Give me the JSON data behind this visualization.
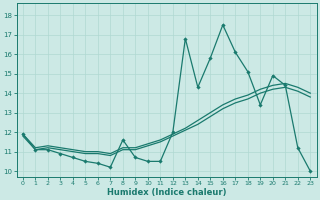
{
  "xlabel": "Humidex (Indice chaleur)",
  "xlim": [
    -0.5,
    23.5
  ],
  "ylim": [
    9.7,
    18.6
  ],
  "xticks": [
    0,
    1,
    2,
    3,
    4,
    5,
    6,
    7,
    8,
    9,
    10,
    11,
    12,
    13,
    14,
    15,
    16,
    17,
    18,
    19,
    20,
    21,
    22,
    23
  ],
  "yticks": [
    10,
    11,
    12,
    13,
    14,
    15,
    16,
    17,
    18
  ],
  "bg_color": "#cce9e5",
  "line_color": "#1a7a6e",
  "grid_color": "#b0d8d2",
  "line1_x": [
    0,
    1,
    2,
    3,
    4,
    5,
    6,
    7,
    8,
    9,
    10,
    11,
    12,
    13,
    14,
    15,
    16,
    17,
    18,
    19,
    20,
    21,
    22,
    23
  ],
  "line1_y": [
    11.9,
    11.1,
    11.1,
    10.9,
    10.7,
    10.5,
    10.4,
    10.2,
    11.6,
    10.7,
    10.5,
    10.5,
    12.0,
    16.8,
    14.3,
    15.8,
    17.5,
    16.1,
    15.1,
    13.4,
    14.9,
    14.4,
    11.2,
    10.0
  ],
  "line2_x": [
    0,
    1,
    2,
    3,
    4,
    5,
    6,
    7,
    8,
    9,
    10,
    11,
    12,
    13,
    14,
    15,
    16,
    17,
    18,
    19,
    20,
    21,
    22,
    23
  ],
  "line2_y": [
    11.8,
    11.1,
    11.2,
    11.1,
    11.0,
    10.9,
    10.9,
    10.8,
    11.1,
    11.1,
    11.3,
    11.5,
    11.8,
    12.1,
    12.4,
    12.8,
    13.2,
    13.5,
    13.7,
    14.0,
    14.2,
    14.3,
    14.1,
    13.8
  ],
  "line3_x": [
    0,
    1,
    2,
    3,
    4,
    5,
    6,
    7,
    8,
    9,
    10,
    11,
    12,
    13,
    14,
    15,
    16,
    17,
    18,
    19,
    20,
    21,
    22,
    23
  ],
  "line3_y": [
    11.9,
    11.2,
    11.3,
    11.2,
    11.1,
    11.0,
    11.0,
    10.9,
    11.2,
    11.2,
    11.4,
    11.6,
    11.9,
    12.2,
    12.6,
    13.0,
    13.4,
    13.7,
    13.9,
    14.2,
    14.4,
    14.5,
    14.3,
    14.0
  ]
}
